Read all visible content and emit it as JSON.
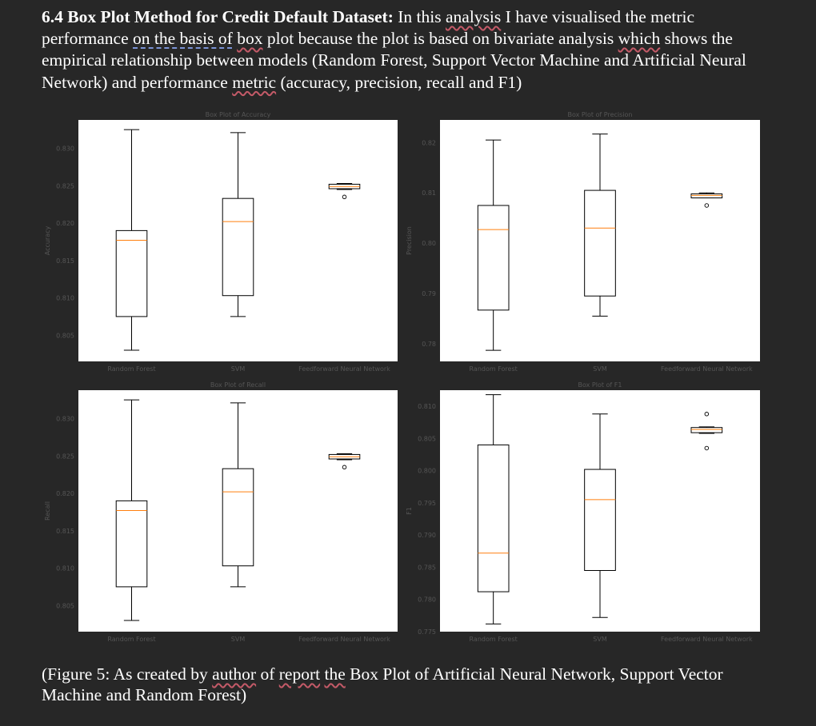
{
  "paragraph": {
    "heading": "6.4 Box Plot Method for Credit Default Dataset:",
    "t1": " In this ",
    "w_analysis": "analysis",
    "t2": " I have visualised the metric performance ",
    "w_onthebasisof": "on the basis of",
    "t3": " ",
    "w_box": "box",
    "t4": " plot because the plot is based on bivariate analysis ",
    "w_which": "which",
    "t5": " shows the empirical relationship between models (Random Forest, Support Vector Machine and Artificial Neural Network) and performance ",
    "w_metric": "metric",
    "t6": " (accuracy, precision, recall and F1)"
  },
  "caption": {
    "c1": "(Figure 5: As created by ",
    "w_author": "author",
    "c2": " of ",
    "w_report": "report",
    "c3": " ",
    "w_the": "the",
    "c4": " Box Plot of Artificial Neural Network, Support Vector Machine and Random Forest)"
  },
  "colors": {
    "background": "#272727",
    "plot_bg": "#ffffff",
    "median": "#ff7f0e",
    "axis_text": "#555555",
    "squiggle": "#c45a68"
  },
  "chart_data": [
    {
      "type": "box",
      "title": "Box Plot of Accuracy",
      "ylabel": "Accuracy",
      "categories": [
        "Random Forest",
        "SVM",
        "Feedforward Neural Network"
      ],
      "ylim": [
        0.8015,
        0.8338
      ],
      "yticks": [
        "0.805",
        "0.810",
        "0.815",
        "0.820",
        "0.825",
        "0.830"
      ],
      "boxes": [
        {
          "min": 0.803,
          "q1": 0.8075,
          "median": 0.8177,
          "q3": 0.819,
          "max": 0.8325,
          "outliers": []
        },
        {
          "min": 0.8075,
          "q1": 0.8103,
          "median": 0.8202,
          "q3": 0.8233,
          "max": 0.8321,
          "outliers": []
        },
        {
          "min": 0.8245,
          "q1": 0.8246,
          "median": 0.8249,
          "q3": 0.8252,
          "max": 0.8253,
          "outliers": [
            0.8235
          ]
        }
      ]
    },
    {
      "type": "box",
      "title": "Box Plot of Precision",
      "ylabel": "Precision",
      "categories": [
        "Random Forest",
        "SVM",
        "Feedforward Neural Network"
      ],
      "ylim": [
        0.7765,
        0.8245
      ],
      "yticks": [
        "0.78",
        "0.79",
        "0.80",
        "0.81",
        "0.82"
      ],
      "boxes": [
        {
          "min": 0.7787,
          "q1": 0.7867,
          "median": 0.8027,
          "q3": 0.8075,
          "max": 0.8205,
          "outliers": []
        },
        {
          "min": 0.7855,
          "q1": 0.7895,
          "median": 0.803,
          "q3": 0.8105,
          "max": 0.8217,
          "outliers": []
        },
        {
          "min": 0.809,
          "q1": 0.809,
          "median": 0.8095,
          "q3": 0.8098,
          "max": 0.81,
          "outliers": [
            0.8075
          ]
        }
      ]
    },
    {
      "type": "box",
      "title": "Box Plot of Recall",
      "ylabel": "Recall",
      "categories": [
        "Random Forest",
        "SVM",
        "Feedforward Neural Network"
      ],
      "ylim": [
        0.8015,
        0.8338
      ],
      "yticks": [
        "0.805",
        "0.810",
        "0.815",
        "0.820",
        "0.825",
        "0.830"
      ],
      "boxes": [
        {
          "min": 0.803,
          "q1": 0.8075,
          "median": 0.8177,
          "q3": 0.819,
          "max": 0.8325,
          "outliers": []
        },
        {
          "min": 0.8075,
          "q1": 0.8103,
          "median": 0.8202,
          "q3": 0.8233,
          "max": 0.8321,
          "outliers": []
        },
        {
          "min": 0.8245,
          "q1": 0.8246,
          "median": 0.8249,
          "q3": 0.8252,
          "max": 0.8253,
          "outliers": [
            0.8235
          ]
        }
      ]
    },
    {
      "type": "box",
      "title": "Box Plot of F1",
      "ylabel": "F1",
      "categories": [
        "Random Forest",
        "SVM",
        "Feedforward Neural Network"
      ],
      "ylim": [
        0.775,
        0.8125
      ],
      "yticks": [
        "0.775",
        "0.780",
        "0.785",
        "0.790",
        "0.795",
        "0.800",
        "0.805",
        "0.810"
      ],
      "boxes": [
        {
          "min": 0.7762,
          "q1": 0.7812,
          "median": 0.7872,
          "q3": 0.804,
          "max": 0.8118,
          "outliers": []
        },
        {
          "min": 0.7772,
          "q1": 0.7845,
          "median": 0.7955,
          "q3": 0.8002,
          "max": 0.8088,
          "outliers": []
        },
        {
          "min": 0.8058,
          "q1": 0.8059,
          "median": 0.8064,
          "q3": 0.8067,
          "max": 0.8068,
          "outliers": [
            0.8088,
            0.8035
          ]
        }
      ]
    }
  ]
}
